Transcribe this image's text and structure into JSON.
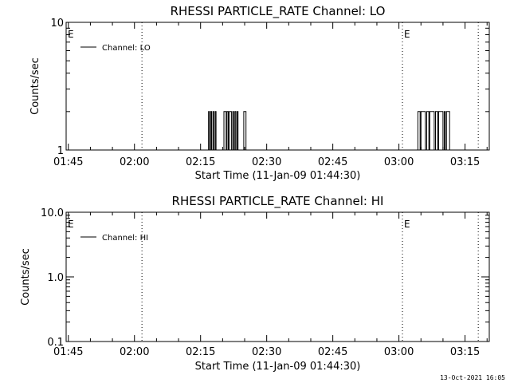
{
  "footer_timestamp": "13-Oct-2021 16:05",
  "chart_data": [
    {
      "type": "line",
      "title": "RHESSI PARTICLE_RATE Channel: LO",
      "xlabel": "Start Time (11-Jan-09 01:44:30)",
      "ylabel": "Counts/sec",
      "x_unit": "minutes after 01:44:30",
      "xlim": [
        0,
        96
      ],
      "yscale": "log",
      "ylim": [
        1,
        10
      ],
      "y_ticks": [
        1,
        10
      ],
      "y_tick_labels": [
        "1",
        "10"
      ],
      "x_ticks": [
        0.5,
        15.5,
        30.5,
        45.5,
        60.5,
        75.5,
        90.5
      ],
      "x_tick_labels": [
        "01:45",
        "02:00",
        "02:15",
        "02:30",
        "02:45",
        "03:00",
        "03:15"
      ],
      "legend": {
        "label": "Channel: LO",
        "position": "top-left"
      },
      "vertical_lines": [
        17.2,
        76.3,
        93.5
      ],
      "event_markers": [
        {
          "label": "E",
          "x": 0
        },
        {
          "label": "E",
          "x": 76.3
        }
      ],
      "series": [
        {
          "x": [
            32.0,
            32.3,
            32.5,
            32.8,
            33.0,
            33.3,
            33.5,
            33.8,
            34.0,
            35.5,
            35.8,
            36.0,
            36.3,
            36.5,
            36.8,
            37.0,
            37.3,
            37.5,
            37.8,
            38.0,
            38.3,
            38.5,
            38.8,
            39.0,
            40.0,
            40.3,
            40.5,
            40.8,
            41.0,
            79.5,
            79.8,
            80.0,
            80.3,
            80.5,
            81.5,
            81.8,
            82.0,
            82.3,
            82.5,
            83.5,
            83.8,
            84.0,
            84.3,
            84.5,
            85.5,
            85.8,
            86.0,
            86.3,
            86.5,
            87.0
          ],
          "values": [
            1,
            2,
            1,
            2,
            1,
            2,
            1,
            2,
            1,
            1,
            2,
            2,
            1,
            2,
            1,
            2,
            2,
            1,
            2,
            1,
            2,
            1,
            2,
            1,
            1,
            2,
            2,
            1,
            1,
            1,
            2,
            2,
            1,
            2,
            1,
            2,
            2,
            1,
            2,
            1,
            2,
            2,
            1,
            2,
            1,
            2,
            1,
            2,
            2,
            1
          ]
        }
      ]
    },
    {
      "type": "line",
      "title": "RHESSI PARTICLE_RATE Channel: HI",
      "xlabel": "Start Time (11-Jan-09 01:44:30)",
      "ylabel": "Counts/sec",
      "x_unit": "minutes after 01:44:30",
      "xlim": [
        0,
        96
      ],
      "yscale": "log",
      "ylim": [
        0.1,
        10
      ],
      "y_ticks": [
        0.1,
        1,
        10
      ],
      "y_tick_labels": [
        "0.1",
        "1.0",
        "10.0"
      ],
      "x_ticks": [
        0.5,
        15.5,
        30.5,
        45.5,
        60.5,
        75.5,
        90.5
      ],
      "x_tick_labels": [
        "01:45",
        "02:00",
        "02:15",
        "02:30",
        "02:45",
        "03:00",
        "03:15"
      ],
      "legend": {
        "label": "Channel: HI",
        "position": "top-left"
      },
      "vertical_lines": [
        17.2,
        76.3,
        93.5
      ],
      "event_markers": [
        {
          "label": "E",
          "x": 0
        },
        {
          "label": "E",
          "x": 76.3
        }
      ],
      "series": [
        {
          "x": [],
          "values": []
        }
      ]
    }
  ]
}
